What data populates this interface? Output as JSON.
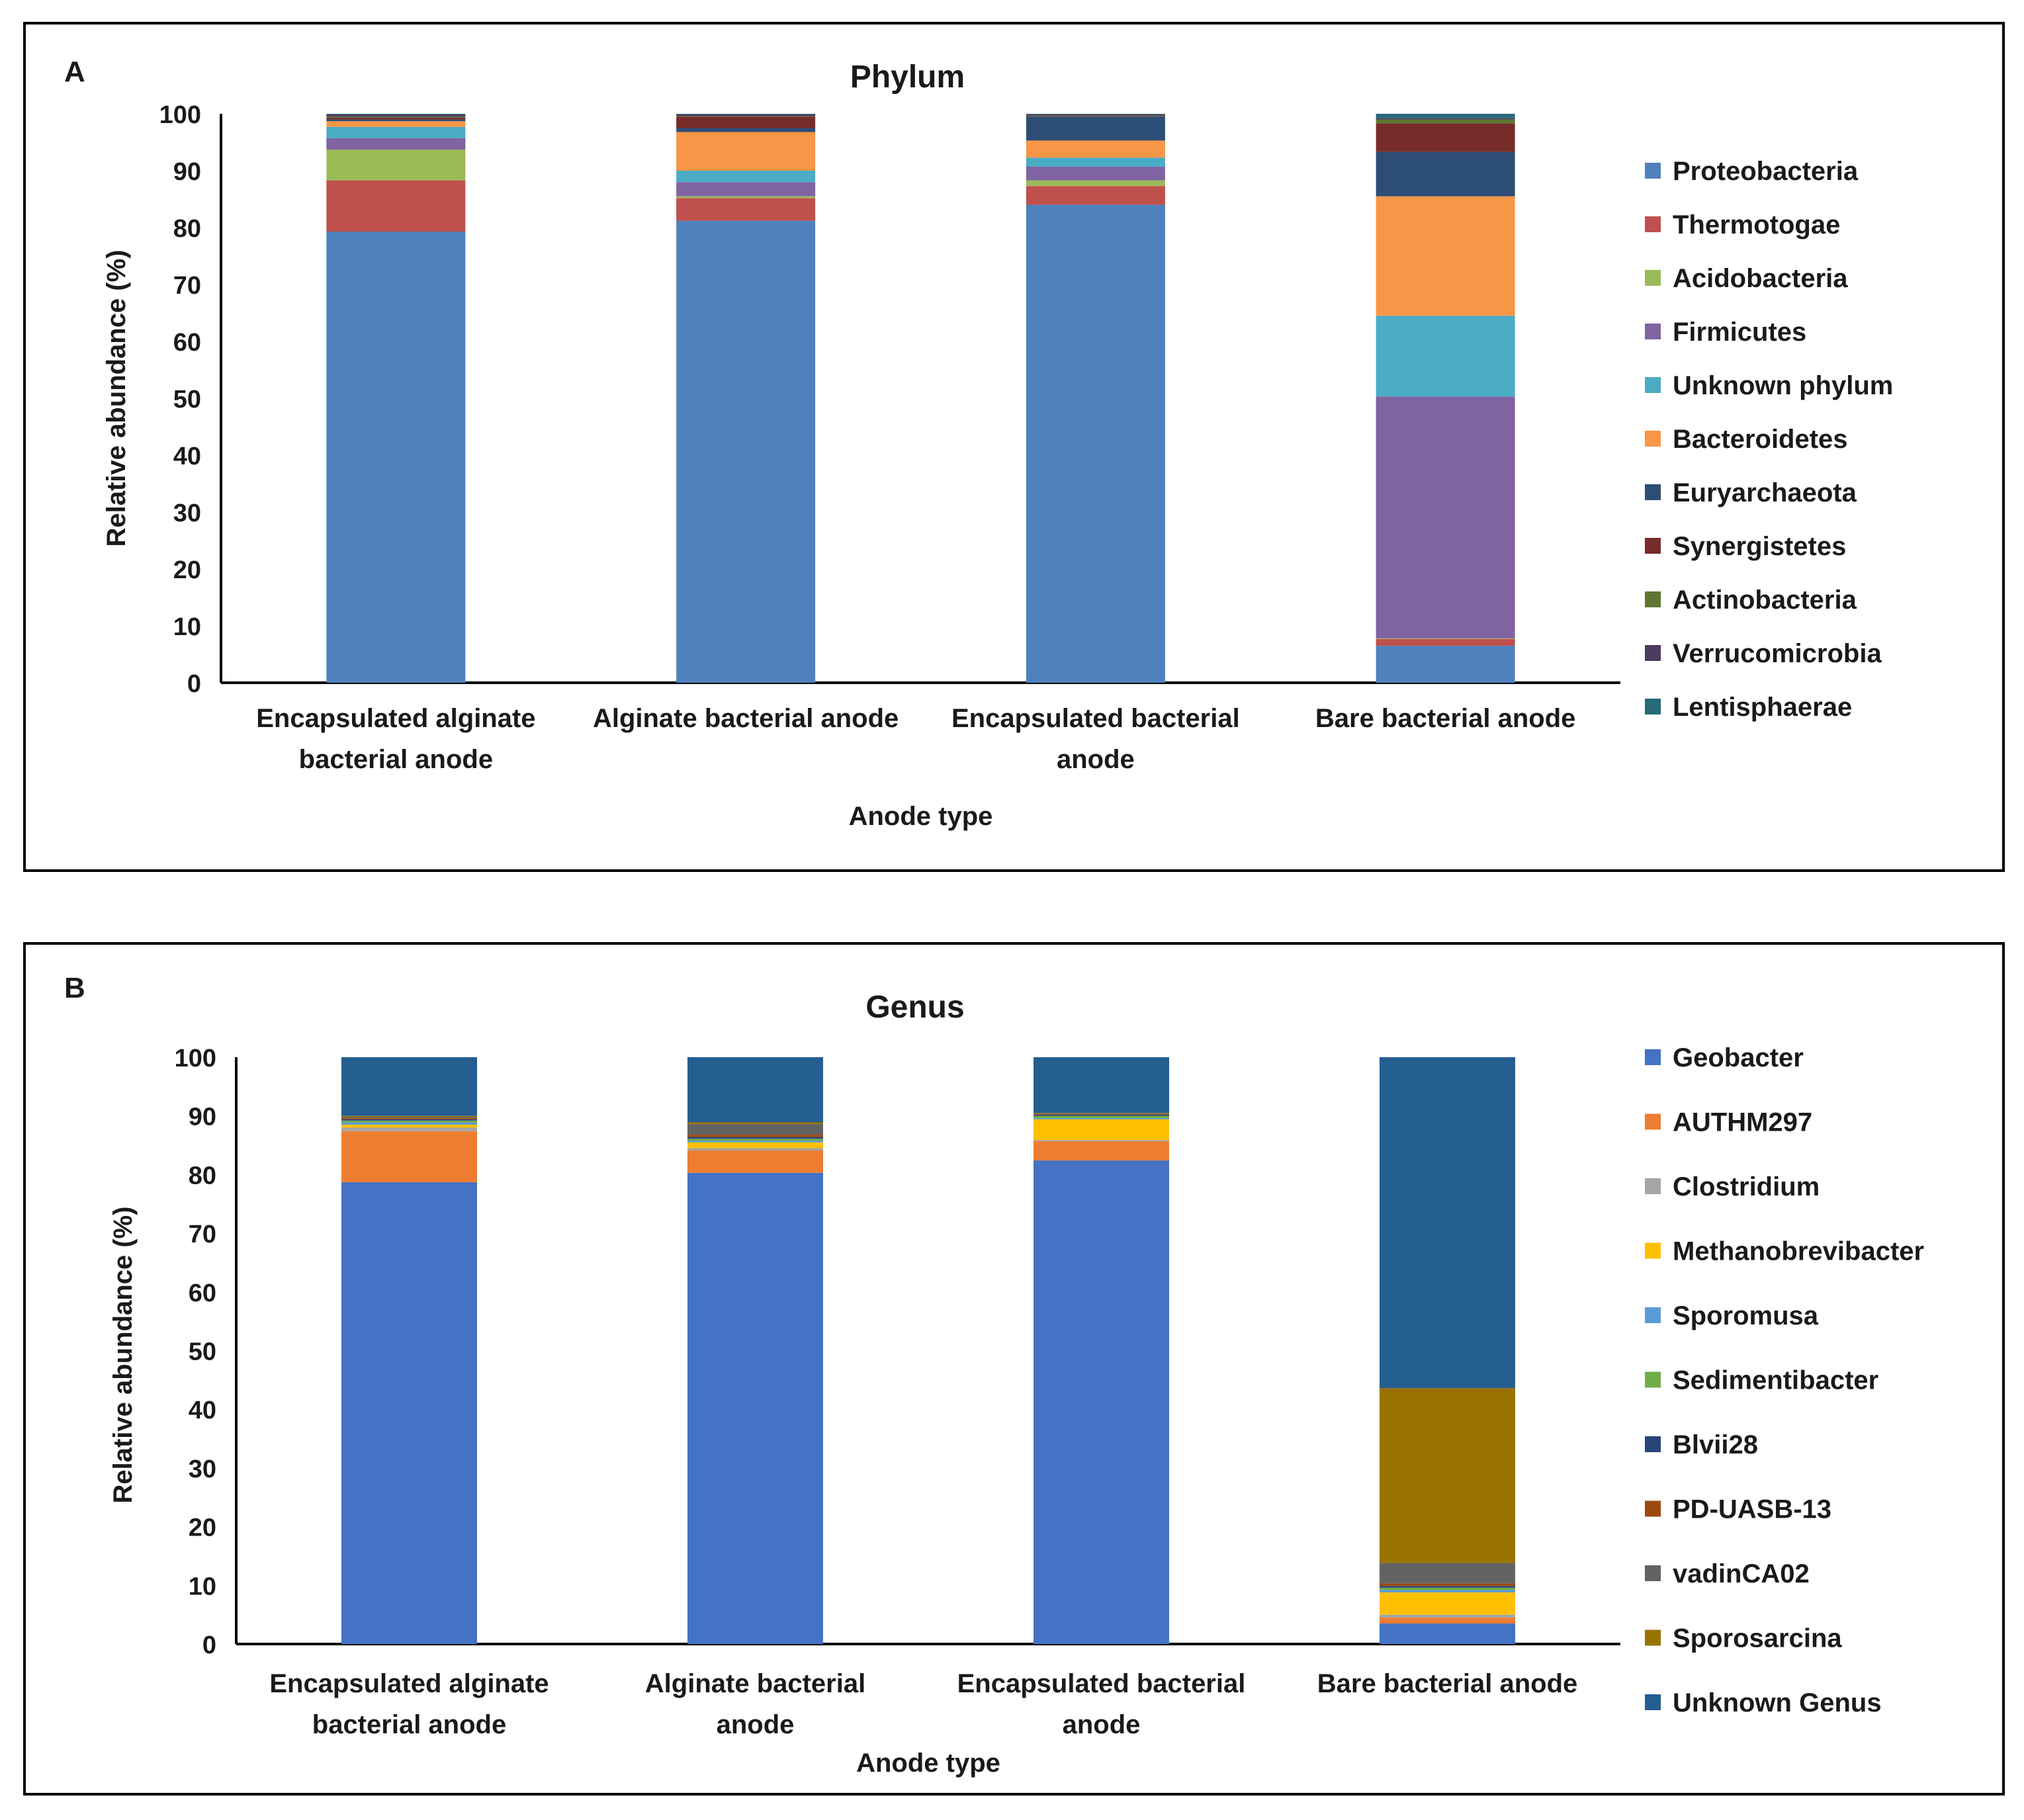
{
  "chart_data": [
    {
      "panel_label": "A",
      "type": "bar",
      "stacked": true,
      "title": "Phylum",
      "xlabel": "Anode type",
      "ylabel": "Relative abundance (%)",
      "ylim": [
        0,
        100
      ],
      "yticks": [
        0,
        10,
        20,
        30,
        40,
        50,
        60,
        70,
        80,
        90,
        100
      ],
      "grid": false,
      "legend_position": "right",
      "categories": [
        [
          "Encapsulated alginate",
          "bacterial anode"
        ],
        [
          "Alginate bacterial anode"
        ],
        [
          "Encapsulated bacterial",
          "anode"
        ],
        [
          "Bare bacterial anode"
        ]
      ],
      "series": [
        {
          "name": "Proteobacteria",
          "color": "#4F81BD",
          "values": [
            79.3,
            81.2,
            84.0,
            6.5
          ]
        },
        {
          "name": "Thermotogae",
          "color": "#C0504D",
          "values": [
            9.0,
            4.0,
            3.3,
            1.2
          ]
        },
        {
          "name": "Acidobacteria",
          "color": "#9BBB59",
          "values": [
            5.4,
            0.3,
            1.0,
            0.1
          ]
        },
        {
          "name": "Firmicutes",
          "color": "#8064A2",
          "values": [
            2.0,
            2.5,
            2.4,
            42.5
          ]
        },
        {
          "name": "Unknown phylum",
          "color": "#4BACC6",
          "values": [
            2.0,
            2.0,
            1.6,
            14.2
          ]
        },
        {
          "name": "Bacteroidetes",
          "color": "#F79646",
          "values": [
            1.0,
            6.8,
            3.0,
            21.0
          ]
        },
        {
          "name": "Euryarchaeota",
          "color": "#2C4D75",
          "values": [
            0.3,
            0.7,
            4.2,
            7.8
          ]
        },
        {
          "name": "Synergistetes",
          "color": "#772C2A",
          "values": [
            0.3,
            2.0,
            0.1,
            5.0
          ]
        },
        {
          "name": "Actinobacteria",
          "color": "#5F7530",
          "values": [
            0.2,
            0.1,
            0.1,
            0.7
          ]
        },
        {
          "name": "Verrucomicrobia",
          "color": "#4D3B62",
          "values": [
            0.4,
            0.3,
            0.2,
            0.2
          ]
        },
        {
          "name": "Lentisphaerae",
          "color": "#276A7C",
          "values": [
            0.1,
            0.1,
            0.1,
            0.8
          ]
        }
      ]
    },
    {
      "panel_label": "B",
      "type": "bar",
      "stacked": true,
      "title": "Genus",
      "xlabel": "Anode type",
      "ylabel": "Relative abundance (%)",
      "ylim": [
        0,
        100
      ],
      "yticks": [
        0,
        10,
        20,
        30,
        40,
        50,
        60,
        70,
        80,
        90,
        100
      ],
      "grid": false,
      "legend_position": "right",
      "categories": [
        [
          "Encapsulated alginate",
          "bacterial anode"
        ],
        [
          "Alginate bacterial",
          "anode"
        ],
        [
          "Encapsulated bacterial",
          "anode"
        ],
        [
          "Bare bacterial anode"
        ]
      ],
      "series": [
        {
          "name": "Geobacter",
          "color": "#4472C4",
          "values": [
            78.7,
            80.3,
            82.4,
            3.5
          ]
        },
        {
          "name": "AUTHM297",
          "color": "#ED7D31",
          "values": [
            8.7,
            3.8,
            3.3,
            1.0
          ]
        },
        {
          "name": "Clostridium",
          "color": "#A5A5A5",
          "values": [
            0.6,
            0.4,
            0.2,
            0.5
          ]
        },
        {
          "name": "Methanobrevibacter",
          "color": "#FFC000",
          "values": [
            0.5,
            1.0,
            3.5,
            3.8
          ]
        },
        {
          "name": "Sporomusa",
          "color": "#5B9BD5",
          "values": [
            0.4,
            0.3,
            0.2,
            0.4
          ]
        },
        {
          "name": "Sedimentibacter",
          "color": "#70AD47",
          "values": [
            0.3,
            0.3,
            0.4,
            0.4
          ]
        },
        {
          "name": "Blvii28",
          "color": "#264478",
          "values": [
            0.2,
            0.3,
            0.2,
            0.3
          ]
        },
        {
          "name": "PD-UASB-13",
          "color": "#9E480E",
          "values": [
            0.2,
            0.4,
            0.1,
            0.4
          ]
        },
        {
          "name": "vadinCA02",
          "color": "#636363",
          "values": [
            0.2,
            1.8,
            0.1,
            3.5
          ]
        },
        {
          "name": "Sporosarcina",
          "color": "#997300",
          "values": [
            0.2,
            0.3,
            0.1,
            29.8
          ]
        },
        {
          "name": "Unknown Genus",
          "color": "#255E91",
          "values": [
            10.0,
            11.1,
            9.5,
            56.4
          ]
        }
      ]
    }
  ]
}
